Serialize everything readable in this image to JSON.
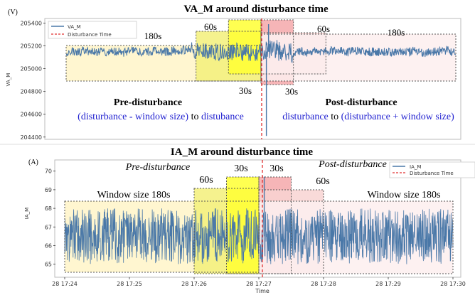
{
  "chart_data": [
    {
      "type": "line",
      "title": "VA_M  around disturbance time",
      "unit_label": "(V)",
      "ylabel": "VA_M",
      "xlabel": "",
      "ylim": [
        204380,
        205440
      ],
      "yticks": [
        204400,
        204600,
        204800,
        205000,
        205200,
        205400
      ],
      "x_ticks": [
        "28 17:24",
        "28 17:25",
        "28 17:26",
        "28 17:27",
        "28 17:28",
        "28 17:29",
        "28 17:30"
      ],
      "x_range_minutes": [
        0,
        6
      ],
      "disturbance_time": "28 17:27",
      "legend": [
        "VA_M",
        "Disturbance Time"
      ],
      "legend_position": "top-left",
      "series": [
        {
          "name": "VA_M",
          "base": 205150,
          "noise": 40,
          "color": "#4a78a8"
        }
      ],
      "spikes": [
        {
          "x": "28 17:27:05",
          "y": 204410
        },
        {
          "x": "28 17:27:07",
          "y": 205390
        }
      ],
      "regions": [
        {
          "label": "180s",
          "range": [
            "28 17:24",
            "28 17:27"
          ],
          "color": "#fff4c8"
        },
        {
          "label": "60s",
          "range": [
            "28 17:26",
            "28 17:27"
          ],
          "color": "#f3f07a"
        },
        {
          "label": "30s",
          "range": [
            "28 17:26:30",
            "28 17:27"
          ],
          "color": "#ffff33"
        },
        {
          "label": "30s",
          "range": [
            "28 17:27",
            "28 17:27:30"
          ],
          "color": "#f5a8aa"
        },
        {
          "label": "60s",
          "range": [
            "28 17:27",
            "28 17:28"
          ],
          "color": "#f8d4d2"
        },
        {
          "label": "180s",
          "range": [
            "28 17:27",
            "28 17:30"
          ],
          "color": "#fdeeee"
        }
      ],
      "annotations": {
        "pre_title": "Pre-disturbance",
        "pre_part1": "(disturbance - window size)",
        "pre_part2": " to ",
        "pre_part3": "distubance",
        "post_title": "Post-disturbance",
        "post_part1": "disturbance",
        "post_part2": " to ",
        "post_part3": "(disturbance +  window size)"
      }
    },
    {
      "type": "line",
      "title": "IA_M  around disturbance time",
      "unit_label": "(A)",
      "ylabel": "IA_M",
      "xlabel": "Time",
      "ylim": [
        64.3,
        70.6
      ],
      "yticks": [
        65,
        66,
        67,
        68,
        69,
        70
      ],
      "x_ticks": [
        "28 17:24",
        "28 17:25",
        "28 17:26",
        "28 17:27",
        "28 17:28",
        "28 17:29",
        "28 17:30"
      ],
      "x_range_minutes": [
        0,
        6
      ],
      "disturbance_time": "28 17:27",
      "legend": [
        "IA_M",
        "Disturbance Time"
      ],
      "legend_position": "top-right",
      "series": [
        {
          "name": "IA_M",
          "base": 66.5,
          "noise": 1.5,
          "color": "#4a78a8"
        }
      ],
      "spikes": [
        {
          "x": "28 17:27:05",
          "y": 69.7
        }
      ],
      "regions": [
        {
          "label": "Window size 180s",
          "range": [
            "28 17:24",
            "28 17:27"
          ],
          "color": "#fff4c8"
        },
        {
          "label": "60s",
          "range": [
            "28 17:26",
            "28 17:27"
          ],
          "color": "#f3f07a"
        },
        {
          "label": "30s",
          "range": [
            "28 17:26:30",
            "28 17:27"
          ],
          "color": "#ffff33"
        },
        {
          "label": "30s",
          "range": [
            "28 17:27",
            "28 17:27:30"
          ],
          "color": "#f5a8aa"
        },
        {
          "label": "60s",
          "range": [
            "28 17:27",
            "28 17:28"
          ],
          "color": "#f8d4d2"
        },
        {
          "label": "Window size 180s",
          "range": [
            "28 17:27",
            "28 17:30"
          ],
          "color": "#fdeeee"
        }
      ],
      "annotations": {
        "pre_title": "Pre-disturbance",
        "post_title": "Post-disturbance"
      }
    }
  ]
}
